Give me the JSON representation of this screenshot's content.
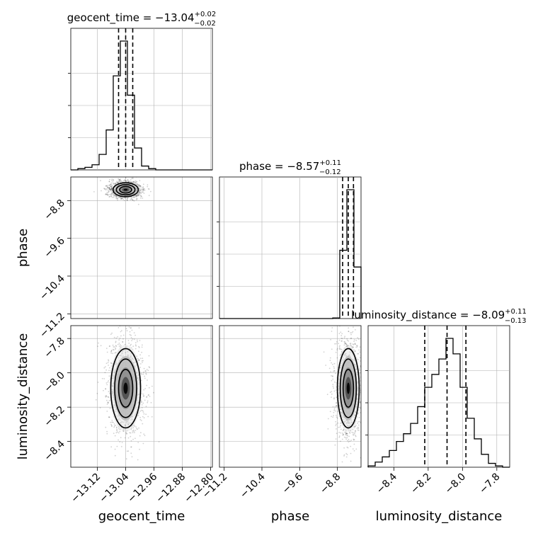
{
  "chart_data": {
    "type": "corner",
    "parameters": [
      "geocent_time",
      "phase",
      "luminosity_distance"
    ],
    "axis_labels": {
      "geocent_time": "geocent_time",
      "phase": "phase",
      "luminosity_distance": "luminosity_distance"
    },
    "ranges": {
      "geocent_time": [
        -13.195,
        -12.795
      ],
      "phase": [
        -11.3,
        -8.3
      ],
      "luminosity_distance": [
        -8.55,
        -7.725
      ]
    },
    "ticks": {
      "geocent_time": {
        "values": [
          -13.12,
          -13.04,
          -12.96,
          -12.88,
          -12.8
        ],
        "labels": [
          "−13.12",
          "−13.04",
          "−12.96",
          "−12.88",
          "−12.80"
        ]
      },
      "phase": {
        "values": [
          -11.2,
          -10.4,
          -9.6,
          -8.8
        ],
        "labels": [
          "−11.2",
          "−10.4",
          "−9.6",
          "−8.8"
        ]
      },
      "luminosity_distance": {
        "values": [
          -8.4,
          -8.2,
          -8.0,
          -7.8
        ],
        "labels": [
          "−8.4",
          "−8.2",
          "−8.0",
          "−7.8"
        ]
      }
    },
    "titles": [
      {
        "param": "geocent_time",
        "prefix": "geocent_time = ",
        "value": "−13.04",
        "plus": "+0.02",
        "minus": "−0.02"
      },
      {
        "param": "phase",
        "prefix": "phase = ",
        "value": "−8.57",
        "plus": "+0.11",
        "minus": "−0.12"
      },
      {
        "param": "luminosity_distance",
        "prefix": "luminosity_distance = ",
        "value": "−8.09",
        "plus": "+0.11",
        "minus": "−0.13"
      }
    ],
    "histograms": {
      "geocent_time": {
        "edges": [
          -13.195,
          -13.175,
          -13.155,
          -13.135,
          -13.115,
          -13.095,
          -13.075,
          -13.055,
          -13.035,
          -13.015,
          -12.995,
          -12.975,
          -12.955,
          -12.935,
          -12.915,
          -12.895,
          -12.875,
          -12.855,
          -12.835,
          -12.815,
          -12.795
        ],
        "counts": [
          0,
          0.01,
          0.02,
          0.04,
          0.12,
          0.31,
          0.73,
          1.0,
          0.58,
          0.17,
          0.03,
          0.01,
          0,
          0,
          0,
          0,
          0,
          0,
          0,
          0
        ],
        "quantiles": [
          -13.06,
          -13.04,
          -13.02
        ]
      },
      "phase": {
        "edges": [
          -11.3,
          -11.15,
          -11.0,
          -10.85,
          -10.7,
          -10.55,
          -10.4,
          -10.25,
          -10.1,
          -9.95,
          -9.8,
          -9.65,
          -9.5,
          -9.35,
          -9.2,
          -9.05,
          -8.9,
          -8.75,
          -8.6,
          -8.45,
          -8.3
        ],
        "counts": [
          0,
          0,
          0,
          0,
          0,
          0,
          0,
          0,
          0,
          0,
          0,
          0,
          0,
          0,
          0,
          0,
          0.005,
          0.53,
          1.0,
          0.4
        ],
        "quantiles": [
          -8.69,
          -8.57,
          -8.46
        ]
      },
      "luminosity_distance": {
        "edges": [
          -8.55,
          -8.50875,
          -8.4675,
          -8.42625,
          -8.385,
          -8.34375,
          -8.3025,
          -8.26125,
          -8.22,
          -8.17875,
          -8.1375,
          -8.09625,
          -8.055,
          -8.01375,
          -7.9725,
          -7.93125,
          -7.89,
          -7.84875,
          -7.8075,
          -7.76625,
          -7.725
        ],
        "counts": [
          0.01,
          0.04,
          0.08,
          0.13,
          0.2,
          0.26,
          0.34,
          0.47,
          0.62,
          0.72,
          0.84,
          1.0,
          0.88,
          0.62,
          0.38,
          0.22,
          0.1,
          0.03,
          0.01,
          0
        ],
        "quantiles": [
          -8.22,
          -8.09,
          -7.98
        ]
      }
    },
    "joints": [
      {
        "x": "geocent_time",
        "y": "phase",
        "cx": -13.04,
        "cy": -8.57,
        "sx": 0.017,
        "sy": 0.07,
        "rho": 0.0
      },
      {
        "x": "geocent_time",
        "y": "luminosity_distance",
        "cx": -13.04,
        "cy": -8.09,
        "sx": 0.02,
        "sy": 0.11,
        "rho": 0.0
      },
      {
        "x": "phase",
        "y": "luminosity_distance",
        "cx": -8.57,
        "cy": -8.09,
        "sx": 0.11,
        "sy": 0.11,
        "rho": 0.0
      }
    ],
    "grid": true,
    "colors": {
      "line": "#000000",
      "grid": "#b0b0b0",
      "points": "#000000",
      "fill_levels": [
        "#ffffff",
        "#e6e6e6",
        "#bdbdbd",
        "#8c8c8c",
        "#4d4d4d",
        "#000000"
      ]
    }
  }
}
